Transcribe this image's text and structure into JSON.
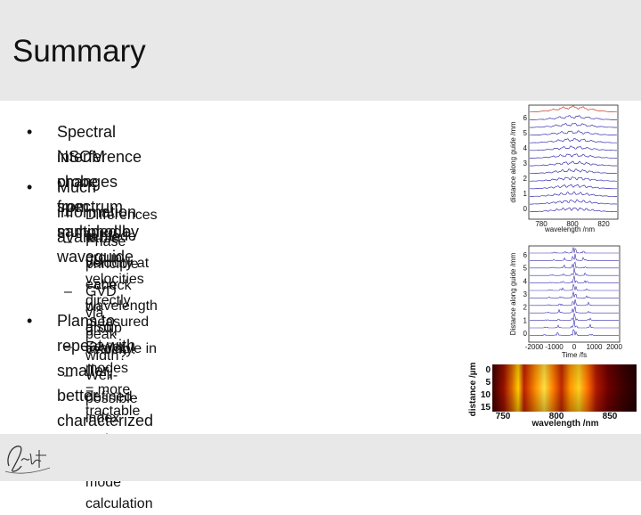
{
  "slide": {
    "title": "Summary"
  },
  "bullets": [
    {
      "text": "Spectral interference changes spectrum sampled by",
      "cont": "NSOM probe from multimode waveguide"
    },
    {
      "text": "Much information available",
      "subs": [
        {
          "text": "Differences in mode group velocities directly measured",
          "cont": ""
        },
        {
          "text": "Phase velocity at each wavelength also available in",
          "cont": "principle - check on group velocity."
        },
        {
          "text": "GVD via peak width?",
          "cont": ""
        }
      ]
    },
    {
      "text": "Plans to repeat with smaller, better characterized guides",
      "subs": [
        {
          "text": "Fewer modes = more tractable",
          "cont": ""
        },
        {
          "text": "Well-defined index makes accurate mode calculation",
          "cont": "possible"
        }
      ]
    }
  ],
  "chart_data": [
    {
      "type": "line",
      "xlabel": "wavelength /nm",
      "ylabel": "distance along guide /mm",
      "xticks": [
        "780",
        "800",
        "820"
      ],
      "yticks": [
        "0",
        "1",
        "2",
        "3",
        "4",
        "5",
        "6"
      ]
    },
    {
      "type": "line",
      "xlabel": "Time /fs",
      "ylabel": "Distance along guide /mm",
      "xticks": [
        "-2000",
        "-1000",
        "0",
        "1000",
        "2000"
      ],
      "yticks": [
        "0",
        "1",
        "2",
        "3",
        "4",
        "5",
        "6"
      ]
    },
    {
      "type": "heatmap",
      "xlabel": "wavelength /nm",
      "ylabel": "distance /µm",
      "xticks": [
        "750",
        "800",
        "850"
      ],
      "yticks": [
        "0",
        "5",
        "10",
        "15"
      ]
    }
  ],
  "colors": {
    "header_band": "#e8e8e8",
    "line_trace": "#3a2fb0",
    "top_trace": "#d03a2a",
    "heatmap_hot": "#ffd000"
  }
}
